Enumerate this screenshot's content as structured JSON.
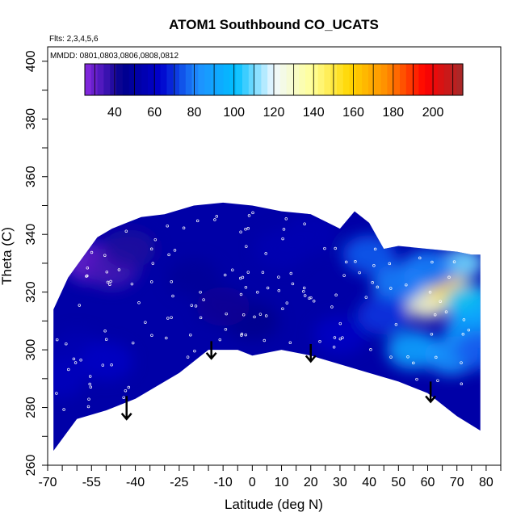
{
  "chart_data": {
    "type": "heatmap",
    "title": "ATOM1 Southbound CO_UCATS",
    "annotations": [
      "Flts: 2,3,4,5,6",
      "MMDD: 0801,0803,0806,0808,0812"
    ],
    "xlabel": "Latitude (deg N)",
    "ylabel": "Theta (C)",
    "xlim": [
      -70,
      85
    ],
    "ylim": [
      260,
      405
    ],
    "xtick_labels": [
      "-70",
      "-55",
      "-40",
      "-25",
      "-10",
      "0",
      "10",
      "20",
      "30",
      "40",
      "50",
      "60",
      "70",
      "80"
    ],
    "xtick_values": [
      -70,
      -55,
      -40,
      -25,
      -10,
      0,
      10,
      20,
      30,
      40,
      50,
      60,
      70,
      80
    ],
    "xminor_ticks": [
      -65,
      -60,
      -50,
      -45,
      -35,
      -30,
      -20,
      -15,
      -5,
      5,
      15,
      25,
      35,
      45,
      55,
      65,
      75,
      85
    ],
    "ytick_labels": [
      "260",
      "280",
      "300",
      "320",
      "340",
      "360",
      "380",
      "400"
    ],
    "ytick_values": [
      260,
      280,
      300,
      320,
      340,
      360,
      380,
      400
    ],
    "colorbar": {
      "range": [
        25,
        215
      ],
      "tick_labels": [
        "40",
        "60",
        "80",
        "100",
        "120",
        "140",
        "160",
        "180",
        "200"
      ],
      "tick_values": [
        40,
        60,
        80,
        100,
        120,
        140,
        160,
        180,
        200
      ],
      "colors": [
        "#8a2be2",
        "#00008b",
        "#0000cd",
        "#1e90ff",
        "#00bfff",
        "#f0f8ff",
        "#ffff99",
        "#ffd700",
        "#ff8c00",
        "#ff0000",
        "#a52a2a"
      ]
    },
    "upper_boundary": [
      [
        -68,
        314
      ],
      [
        -63,
        325
      ],
      [
        -58,
        332
      ],
      [
        -53,
        339
      ],
      [
        -48,
        342
      ],
      [
        -43,
        344
      ],
      [
        -38,
        346
      ],
      [
        -30,
        347
      ],
      [
        -20,
        350
      ],
      [
        -10,
        351
      ],
      [
        0,
        350
      ],
      [
        10,
        348
      ],
      [
        20,
        347
      ],
      [
        30,
        342
      ],
      [
        35,
        348
      ],
      [
        40,
        344
      ],
      [
        45,
        335
      ],
      [
        50,
        336
      ],
      [
        60,
        335
      ],
      [
        70,
        334
      ],
      [
        75,
        333
      ],
      [
        78,
        333
      ]
    ],
    "lower_boundary": [
      [
        -68,
        265
      ],
      [
        -60,
        276
      ],
      [
        -50,
        279
      ],
      [
        -40,
        283
      ],
      [
        -25,
        292
      ],
      [
        -15,
        300
      ],
      [
        -5,
        300
      ],
      [
        0,
        298
      ],
      [
        10,
        300
      ],
      [
        20,
        298
      ],
      [
        30,
        295
      ],
      [
        40,
        292
      ],
      [
        50,
        289
      ],
      [
        60,
        285
      ],
      [
        70,
        277
      ],
      [
        78,
        272
      ]
    ],
    "hotspots": [
      {
        "lat": 60,
        "theta": 316,
        "value": 130
      },
      {
        "lat": 65,
        "theta": 322,
        "value": 160
      },
      {
        "lat": 68,
        "theta": 323,
        "value": 200
      },
      {
        "lat": 70,
        "theta": 319,
        "value": 150
      },
      {
        "lat": 75,
        "theta": 316,
        "value": 100
      },
      {
        "lat": 75,
        "theta": 307,
        "value": 90
      },
      {
        "lat": 72,
        "theta": 330,
        "value": 110
      },
      {
        "lat": 60,
        "theta": 328,
        "value": 80
      },
      {
        "lat": 50,
        "theta": 323,
        "value": 80
      },
      {
        "lat": 55,
        "theta": 300,
        "value": 90
      },
      {
        "lat": 45,
        "theta": 312,
        "value": 70
      },
      {
        "lat": 68,
        "theta": 298,
        "value": 85
      },
      {
        "lat": 78,
        "theta": 300,
        "value": 75
      },
      {
        "lat": 40,
        "theta": 333,
        "value": 75
      },
      {
        "lat": 30,
        "theta": 305,
        "value": 60
      },
      {
        "lat": -55,
        "theta": 330,
        "value": 30
      },
      {
        "lat": -48,
        "theta": 328,
        "value": 35
      },
      {
        "lat": -42,
        "theta": 335,
        "value": 40
      },
      {
        "lat": -60,
        "theta": 300,
        "value": 55
      },
      {
        "lat": -50,
        "theta": 296,
        "value": 60
      },
      {
        "lat": -66,
        "theta": 290,
        "value": 58
      },
      {
        "lat": 10,
        "theta": 335,
        "value": 55
      },
      {
        "lat": 20,
        "theta": 340,
        "value": 55
      },
      {
        "lat": -20,
        "theta": 325,
        "value": 48
      },
      {
        "lat": 0,
        "theta": 310,
        "value": 45
      },
      {
        "lat": -10,
        "theta": 315,
        "value": 42
      }
    ],
    "arrows": [
      {
        "lat": -43,
        "theta_top": 284,
        "theta_tip": 276
      },
      {
        "lat": -14,
        "theta_top": 303,
        "theta_tip": 297
      },
      {
        "lat": 20,
        "theta_top": 302,
        "theta_tip": 296
      },
      {
        "lat": 61,
        "theta_top": 289,
        "theta_tip": 282
      }
    ]
  }
}
